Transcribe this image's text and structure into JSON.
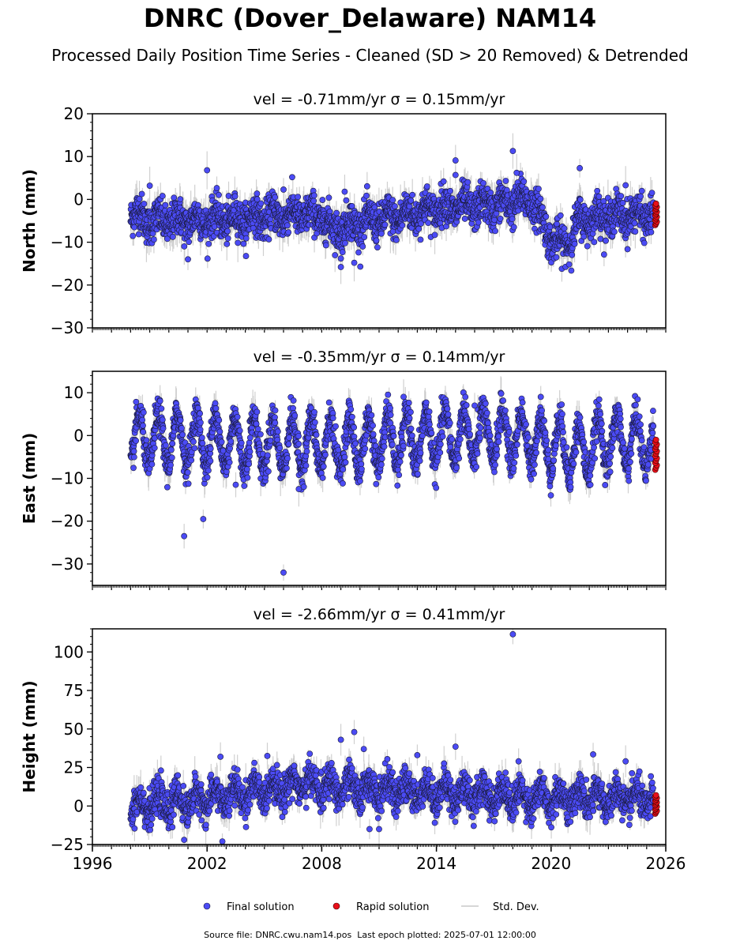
{
  "title": "DNRC (Dover_Delaware) NAM14",
  "subtitle": "Processed Daily Position Time Series - Cleaned (SD > 20 Removed) & Detrended",
  "footer": {
    "source_label": "Source file: DNRC.cwu.nam14.pos",
    "last_epoch_label": "Last epoch plotted: 2025-07-01 12:00:00"
  },
  "legend": [
    {
      "label": "Final solution",
      "color": "#4b4bf5",
      "marker": "circle"
    },
    {
      "label": "Rapid solution",
      "color": "#e8101a",
      "marker": "circle"
    },
    {
      "label": "Std. Dev.",
      "color": "#c8c8c8",
      "marker": "line"
    }
  ],
  "chart_data": [
    {
      "type": "scatter",
      "panel": "north",
      "title": "vel = -0.71mm/yr   σ = 0.15mm/yr",
      "ylabel": "North (mm)",
      "ylim": [
        -30,
        20
      ],
      "yticks": [
        20,
        10,
        0,
        -10,
        -20,
        -30
      ],
      "xlim": [
        1996,
        2026
      ],
      "xticks": [],
      "trend": [
        [
          1998.0,
          -3
        ],
        [
          1999.0,
          -5
        ],
        [
          2001.0,
          -5
        ],
        [
          2004.0,
          -4.5
        ],
        [
          2006.5,
          -3.5
        ],
        [
          2008.0,
          -4
        ],
        [
          2008.5,
          -7
        ],
        [
          2010.0,
          -5.5
        ],
        [
          2012.0,
          -4
        ],
        [
          2014.0,
          -2
        ],
        [
          2017.0,
          -1.5
        ],
        [
          2019.0,
          0
        ],
        [
          2019.5,
          -5
        ],
        [
          2020.0,
          -9
        ],
        [
          2020.5,
          -11
        ],
        [
          2021.0,
          -9
        ],
        [
          2021.5,
          -5
        ],
        [
          2022.5,
          -4
        ],
        [
          2025.5,
          -3.5
        ]
      ],
      "amplitude": 1.5,
      "noise": 2.2,
      "outliers": [
        [
          1999.0,
          3.2
        ],
        [
          2001.0,
          -14
        ],
        [
          2002.0,
          6.8
        ],
        [
          2006.0,
          2.3
        ],
        [
          2009.0,
          -13.8
        ],
        [
          2009.0,
          -15.8
        ],
        [
          2009.2,
          1.8
        ],
        [
          2009.7,
          -14.8
        ],
        [
          2015.0,
          9.1
        ],
        [
          2015.0,
          5.7
        ],
        [
          2018.0,
          11.3
        ],
        [
          2018.2,
          6.2
        ],
        [
          2021.5,
          7.3
        ],
        [
          2023.9,
          3.3
        ]
      ],
      "rapid_range": [
        -6,
        -1
      ]
    },
    {
      "type": "scatter",
      "panel": "east",
      "title": "vel = -0.35mm/yr   σ = 0.14mm/yr",
      "ylabel": "East (mm)",
      "ylim": [
        -35,
        15
      ],
      "yticks": [
        10,
        0,
        -10,
        -20,
        -30
      ],
      "xlim": [
        1996,
        2026
      ],
      "xticks": [],
      "trend": [
        [
          1998.0,
          -1
        ],
        [
          2001.0,
          -1
        ],
        [
          2005.0,
          -2
        ],
        [
          2010.0,
          -2
        ],
        [
          2015.0,
          0
        ],
        [
          2018.0,
          0
        ],
        [
          2020.0,
          -2
        ],
        [
          2021.5,
          -4
        ],
        [
          2023.0,
          -1
        ],
        [
          2025.5,
          -2
        ]
      ],
      "amplitude": 6,
      "noise": 2.0,
      "outliers": [
        [
          2000.8,
          -23.5
        ],
        [
          2001.8,
          -19.5
        ],
        [
          2006.0,
          -32
        ],
        [
          2003.5,
          -11.5
        ],
        [
          2006.8,
          -12.5
        ],
        [
          2016.0,
          7.0
        ]
      ],
      "rapid_range": [
        -8,
        -1
      ]
    },
    {
      "type": "scatter",
      "panel": "height",
      "title": "vel = -2.66mm/yr   σ = 0.41mm/yr",
      "ylabel": "Height (mm)",
      "ylim": [
        -25,
        115
      ],
      "yticks": [
        100,
        75,
        50,
        25,
        0,
        -25
      ],
      "xlim": [
        1996,
        2026
      ],
      "xticks": [
        1996,
        2002,
        2008,
        2014,
        2020,
        2026
      ],
      "trend": [
        [
          1998.0,
          0
        ],
        [
          2001.0,
          3
        ],
        [
          2004.0,
          8
        ],
        [
          2007.0,
          15
        ],
        [
          2008.5,
          12
        ],
        [
          2012.0,
          10
        ],
        [
          2016.0,
          8
        ],
        [
          2019.0,
          5
        ],
        [
          2022.0,
          5
        ],
        [
          2025.5,
          4
        ]
      ],
      "amplitude": 6,
      "noise": 5.5,
      "outliers": [
        [
          2018.0,
          111.5
        ],
        [
          2009.0,
          43
        ],
        [
          2009.7,
          48
        ],
        [
          2010.2,
          37
        ],
        [
          2015.0,
          38.5
        ],
        [
          2013.0,
          33
        ],
        [
          2018.3,
          29
        ],
        [
          2022.2,
          33.5
        ],
        [
          2023.9,
          29
        ],
        [
          2002.7,
          32
        ],
        [
          2000.8,
          -22
        ],
        [
          2002.8,
          -23
        ],
        [
          2010.5,
          -15
        ],
        [
          2011.0,
          -15
        ]
      ],
      "rapid_range": [
        -5,
        7
      ]
    }
  ]
}
